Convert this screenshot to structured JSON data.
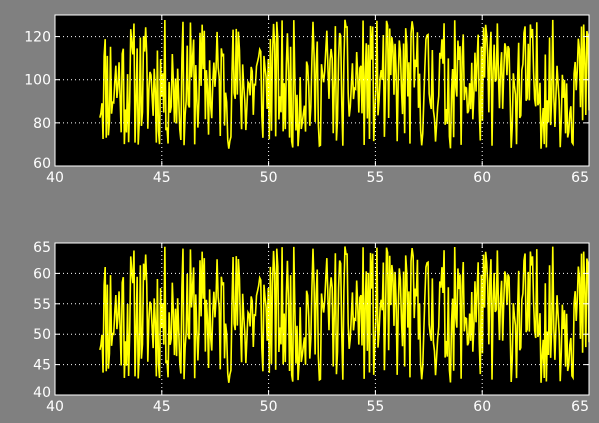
{
  "window": {
    "background": "#808080"
  },
  "colors": {
    "axes_bg": "#000000",
    "axes_frame": "#ffffff",
    "grid": "#ffffff",
    "line": "#ffff00",
    "tick_text": "#ffffff"
  },
  "chart_data": [
    {
      "type": "line",
      "title": "",
      "xlabel": "",
      "ylabel": "",
      "xlim": [
        40,
        65
      ],
      "ylim": [
        60,
        130
      ],
      "xticks": [
        40,
        45,
        50,
        55,
        60,
        65
      ],
      "yticks": [
        60,
        80,
        100,
        120
      ],
      "grid": true,
      "series": [
        {
          "color": "#ffff00",
          "x_start": 42.1,
          "x_end": 65,
          "y_min": 68,
          "y_max": 128,
          "samples": 460,
          "seed": 11
        }
      ]
    },
    {
      "type": "line",
      "title": "",
      "xlabel": "",
      "ylabel": "",
      "xlim": [
        40,
        65
      ],
      "ylim": [
        40,
        65
      ],
      "xticks": [
        40,
        45,
        50,
        55,
        60,
        65
      ],
      "yticks": [
        40,
        45,
        50,
        55,
        60,
        65
      ],
      "grid": true,
      "series": [
        {
          "color": "#ffff00",
          "x_start": 42.1,
          "x_end": 65,
          "y_min": 42,
          "y_max": 64.5,
          "samples": 460,
          "seed": 11
        }
      ]
    }
  ]
}
